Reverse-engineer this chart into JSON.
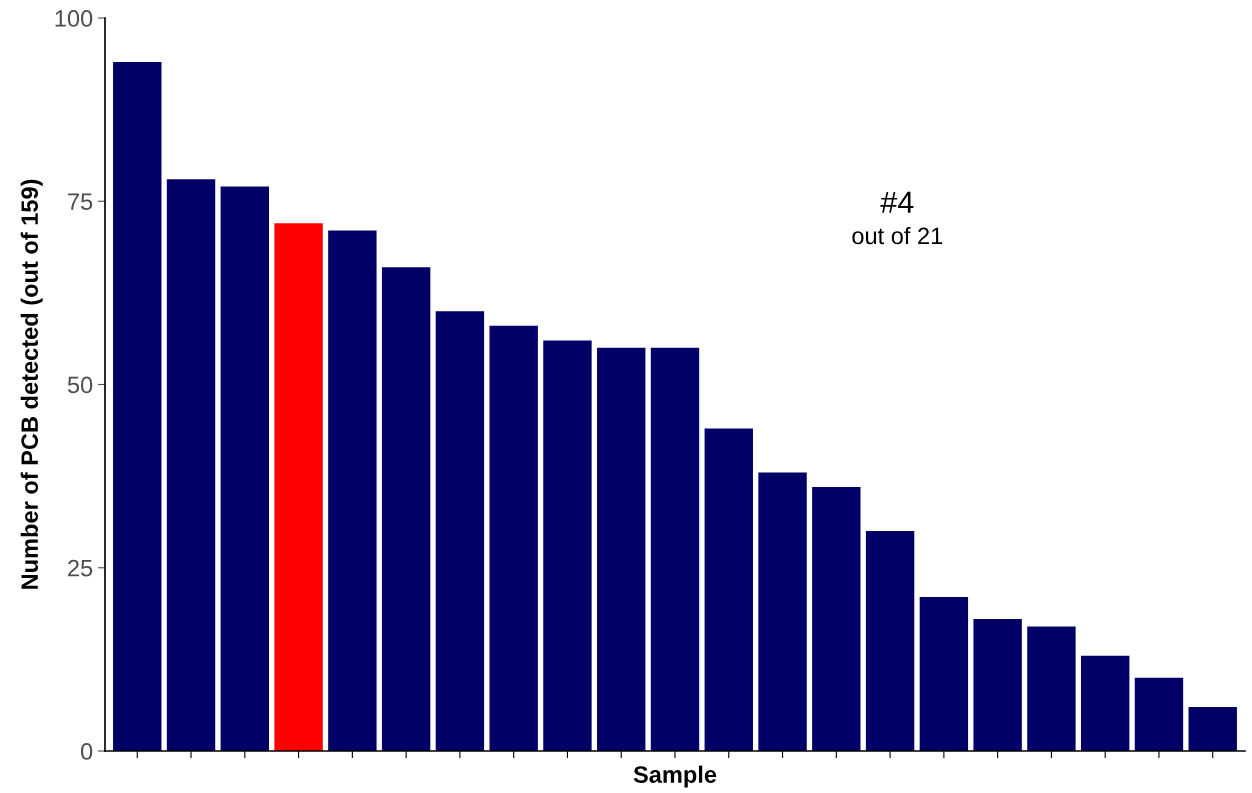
{
  "chart_data": {
    "type": "bar",
    "xlabel": "Sample",
    "ylabel": "Number of PCB detected (out of 159)",
    "categories": [
      null,
      null,
      null,
      null,
      null,
      null,
      null,
      null,
      null,
      null,
      null,
      null,
      null,
      null,
      null,
      null,
      null,
      null,
      null,
      null,
      null
    ],
    "values": [
      94,
      78,
      77,
      72,
      71,
      66,
      60,
      58,
      56,
      55,
      55,
      44,
      38,
      36,
      30,
      21,
      18,
      17,
      13,
      10,
      6
    ],
    "colors": [
      "#000066",
      "#000066",
      "#000066",
      "#ff0000",
      "#000066",
      "#000066",
      "#000066",
      "#000066",
      "#000066",
      "#000066",
      "#000066",
      "#000066",
      "#000066",
      "#000066",
      "#000066",
      "#000066",
      "#000066",
      "#000066",
      "#000066",
      "#000066",
      "#000066"
    ],
    "ylim": [
      0,
      100
    ],
    "yticks": [
      0,
      25,
      50,
      75,
      100
    ],
    "grid": false,
    "legend": false,
    "annotations": [
      "#4",
      "out of 21"
    ]
  }
}
